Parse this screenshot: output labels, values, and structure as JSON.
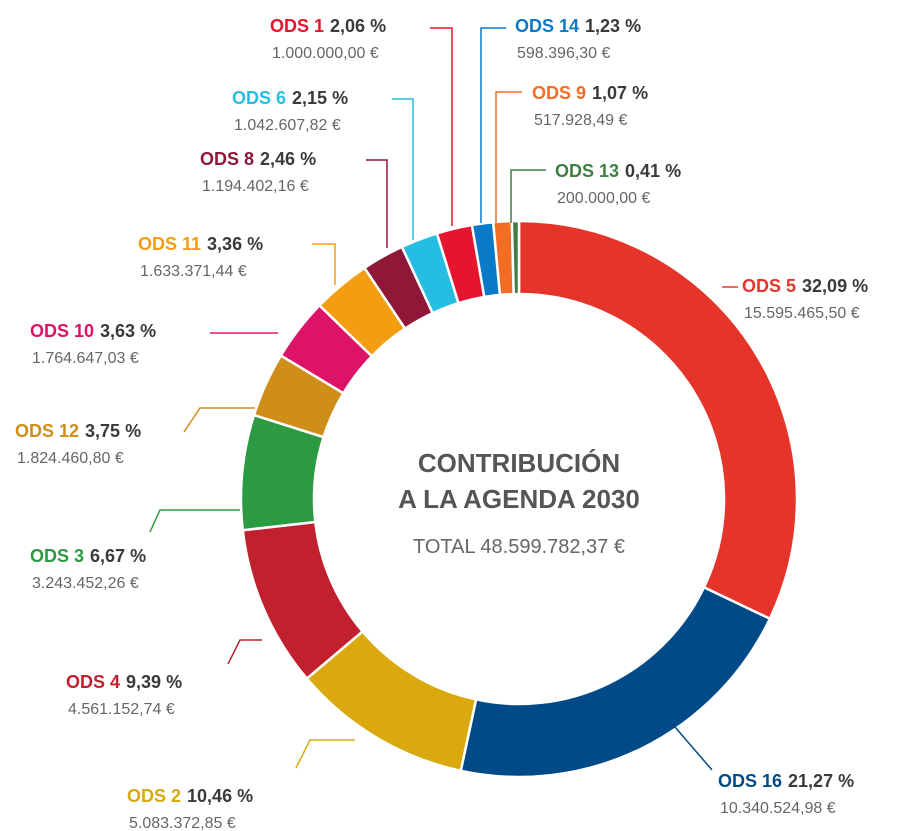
{
  "chart_data": {
    "type": "donut",
    "title_lines": [
      "CONTRIBUCIÓN",
      "A LA AGENDA 2030"
    ],
    "subtitle": "TOTAL 48.599.782,37 €",
    "categories": [
      "ODS 5",
      "ODS 16",
      "ODS 2",
      "ODS 4",
      "ODS 3",
      "ODS 12",
      "ODS 10",
      "ODS 11",
      "ODS 8",
      "ODS 6",
      "ODS 1",
      "ODS 14",
      "ODS 9",
      "ODS 13"
    ],
    "values": [
      32.09,
      21.27,
      10.46,
      9.39,
      6.67,
      3.75,
      3.63,
      3.36,
      2.46,
      2.15,
      2.06,
      1.23,
      1.07,
      0.41
    ],
    "value_labels": [
      "32,09 %",
      "21,27 %",
      "10,46 %",
      "9,39 %",
      "6,67 %",
      "3,75 %",
      "3,63 %",
      "3,36 %",
      "2,46 %",
      "2,15 %",
      "2,06 %",
      "1,23 %",
      "1,07 %",
      "0,41 %"
    ],
    "amount_labels": [
      "15.595.465,50 €",
      "10.340.524,98 €",
      "5.083.372,85 €",
      "4.561.152,74 €",
      "3.243.452,26 €",
      "1.824.460,80 €",
      "1.764.647,03 €",
      "1.633.371,44 €",
      "1.194.402,16 €",
      "1.042.607,82 €",
      "1.000.000,00 €",
      "598.396,30 €",
      "517.928,49 €",
      "200.000,00 €"
    ],
    "colors": [
      "#e5352b",
      "#004b87",
      "#d9a90e",
      "#c1202f",
      "#2b9a41",
      "#cf8d1a",
      "#dd1367",
      "#f39d12",
      "#8f1838",
      "#26bde2",
      "#e5142f",
      "#0a79c7",
      "#f36d25",
      "#3f7e44"
    ]
  }
}
